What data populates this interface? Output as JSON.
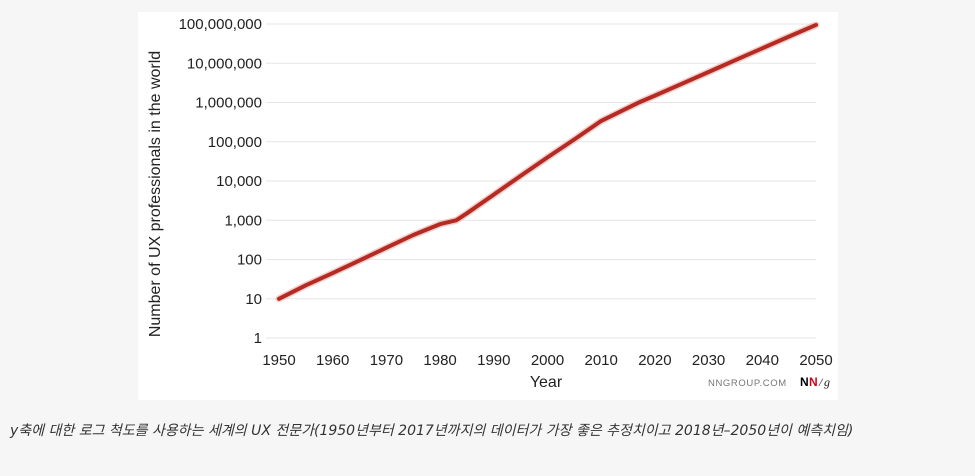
{
  "chart_data": {
    "type": "line",
    "xlabel": "Year",
    "ylabel": "Number of UX professionals in the world",
    "yscale": "log",
    "xlim": [
      1950,
      2050
    ],
    "ylim": [
      1,
      100000000
    ],
    "x_ticks": [
      1950,
      1960,
      1970,
      1980,
      1990,
      2000,
      2010,
      2020,
      2030,
      2040,
      2050
    ],
    "y_ticks": [
      {
        "value": 1,
        "label": "1"
      },
      {
        "value": 10,
        "label": "10"
      },
      {
        "value": 100,
        "label": "100"
      },
      {
        "value": 1000,
        "label": "1,000"
      },
      {
        "value": 10000,
        "label": "10,000"
      },
      {
        "value": 100000,
        "label": "100,000"
      },
      {
        "value": 1000000,
        "label": "1,000,000"
      },
      {
        "value": 10000000,
        "label": "10,000,000"
      },
      {
        "value": 100000000,
        "label": "100,000,000"
      }
    ],
    "grid": "horizontal",
    "line_color": "#b52a22",
    "series": [
      {
        "x": [
          1950,
          1955,
          1960,
          1965,
          1970,
          1975,
          1980,
          1983,
          1985,
          1990,
          1995,
          2000,
          2005,
          2010,
          2017,
          2020,
          2025,
          2030,
          2035,
          2040,
          2045,
          2050
        ],
        "y": [
          10,
          22,
          45,
          95,
          200,
          420,
          800,
          1000,
          1500,
          4500,
          13500,
          40000,
          115000,
          340000,
          1000000,
          1500000,
          3000000,
          6000000,
          12000000,
          24000000,
          48000000,
          95000000
        ]
      }
    ],
    "credit": "NNGROUP.COM",
    "logo": {
      "n1": "N",
      "n2": "N",
      "slash": "/",
      "g": "g",
      "n1_color": "#222222",
      "n2_color": "#d0021b"
    }
  },
  "caption": "y축에 대한 로그 척도를 사용하는 세계의 UX 전문가(1950년부터 2017년까지의 데이터가 가장 좋은 추정치이고 2018년–2050년이 예측치임)"
}
